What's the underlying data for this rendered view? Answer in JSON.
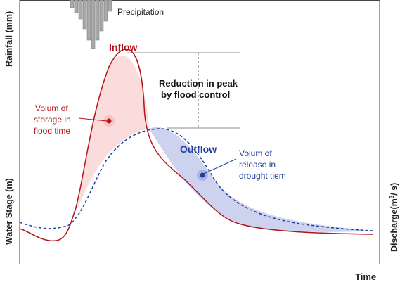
{
  "precipitation_label": "Precipitation",
  "inflow_label": "Inflow",
  "outflow_label": "Outflow",
  "reduction_label": {
    "line1": "Reduction in peak",
    "line2": "by flood control"
  },
  "storage_label": {
    "line1": "Volum of",
    "line2": "storage in",
    "line3": "flood time"
  },
  "release_label": {
    "line1": "Volum of",
    "line2": "release in",
    "line3": "drought tiem"
  },
  "axes": {
    "left_top": "Rainfall (mm)",
    "left_bottom": "Water Stage (m)",
    "right_prefix": "Discharge(m",
    "right_sup": "3",
    "right_suffix": "/ s)",
    "bottom": "Time"
  },
  "colors": {
    "inflow": "#b5121b",
    "outflow": "#1f3f9e",
    "storage_fill": "#fbdcdc",
    "release_fill": "#cdd2ee",
    "bars": "#a9a9a9",
    "frame": "#444444"
  }
}
